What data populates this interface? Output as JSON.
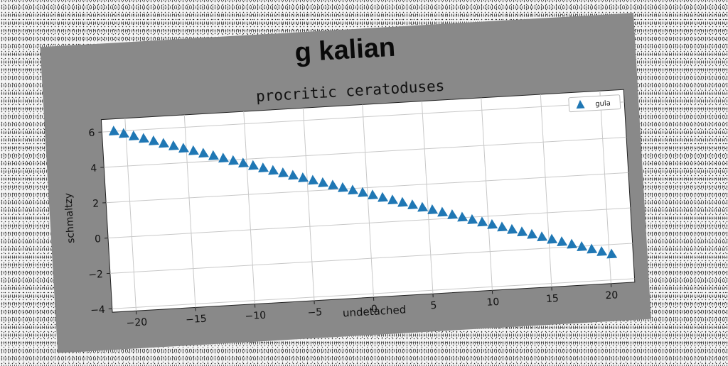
{
  "header": {
    "title": "g kalian"
  },
  "colors": {
    "card_bg": "#898989",
    "plot_bg": "#ffffff",
    "grid": "#c8c8c8",
    "marker": "#1f77b4",
    "text": "#111111"
  },
  "chart_data": {
    "type": "scatter",
    "title": "procritic ceratoduses",
    "xlabel": "undetached",
    "ylabel": "schmaltzy",
    "xlim": [
      -22,
      22
    ],
    "ylim": [
      -4.2,
      6.7
    ],
    "xticks": [
      -20,
      -15,
      -10,
      -5,
      0,
      5,
      10,
      15,
      20
    ],
    "xtick_labels": [
      "−20",
      "−15",
      "−10",
      "−5",
      "0",
      "5",
      "10",
      "15",
      "20"
    ],
    "yticks": [
      -4,
      -2,
      0,
      2,
      4,
      6
    ],
    "ytick_labels": [
      "−4",
      "−2",
      "0",
      "2",
      "4",
      "6"
    ],
    "grid": true,
    "legend_position": "top-right",
    "marker": "triangle-up",
    "series": [
      {
        "name": "gula",
        "color": "#1f77b4",
        "x_start": -21,
        "x_end": 20.2,
        "count": 51,
        "y_start": 6.0,
        "y_end": -2.55
      }
    ]
  }
}
